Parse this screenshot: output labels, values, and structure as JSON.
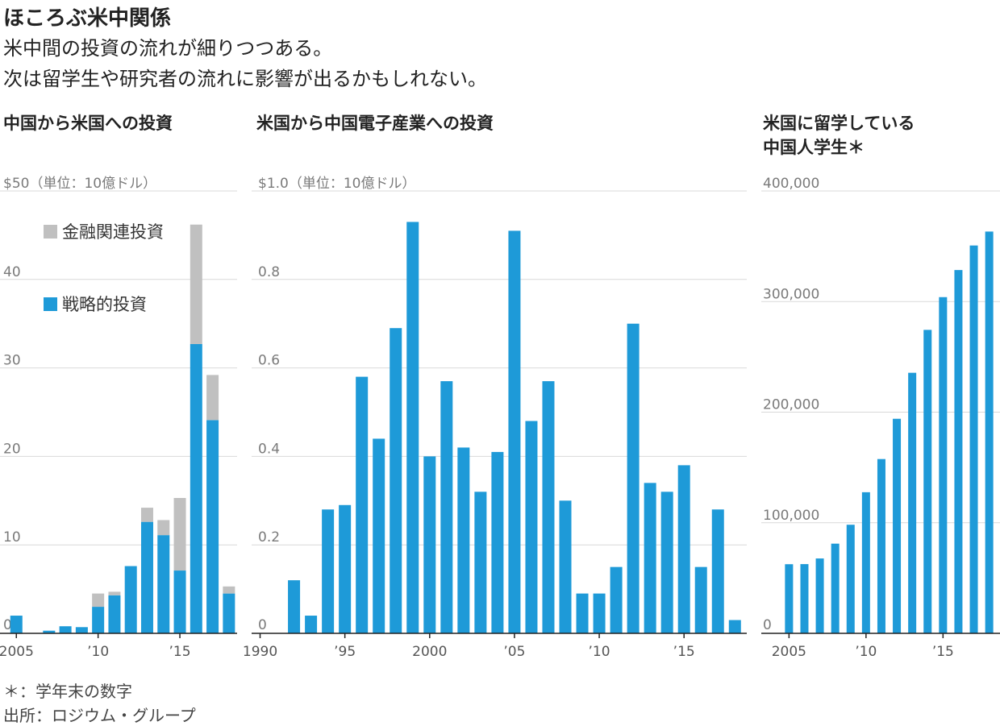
{
  "header": {
    "title": "ほころぶ米中関係",
    "subtitle_line1": "米中間の投資の流れが細りつつある。",
    "subtitle_line2": "次は留学生や研究者の流れに影響が出るかもしれない。"
  },
  "footer": {
    "note": "＊：学年末の数字",
    "source": "出所：ロジウム・グループ"
  },
  "colors": {
    "strategic": "#1e9ad8",
    "financial": "#c0c0c0",
    "grid": "#d9d9d9",
    "axis": "#222222"
  },
  "chart_data": [
    {
      "type": "bar",
      "stacked": true,
      "title": "中国から米国への投資",
      "unit_label": "$50（単位：10億ドル）",
      "ylim": [
        0,
        50
      ],
      "yticks": [
        "10",
        "20",
        "30",
        "40"
      ],
      "y_zero_label": "0",
      "x": [
        2005,
        2006,
        2007,
        2008,
        2009,
        2010,
        2011,
        2012,
        2013,
        2014,
        2015,
        2016,
        2017,
        2018
      ],
      "xticks": [
        {
          "x": 2005,
          "label": "2005"
        },
        {
          "x": 2010,
          "label": "’10"
        },
        {
          "x": 2015,
          "label": "’15"
        }
      ],
      "series": [
        {
          "name": "戦略的投資",
          "color": "#1e9ad8",
          "values": [
            2.0,
            0,
            0.3,
            0.8,
            0.7,
            3.0,
            4.3,
            7.6,
            12.6,
            11.1,
            7.1,
            32.7,
            24.1,
            4.5
          ]
        },
        {
          "name": "金融関連投資",
          "color": "#c0c0c0",
          "values": [
            0,
            0,
            0,
            0,
            0,
            1.5,
            0.4,
            0,
            1.6,
            1.7,
            8.2,
            13.5,
            5.1,
            0.8
          ]
        }
      ],
      "legend": [
        "金融関連投資",
        "戦略的投資"
      ],
      "legend_position": "top-left",
      "grid": true
    },
    {
      "type": "bar",
      "title": "米国から中国電子産業への投資",
      "unit_label": "$1.0（単位：10億ドル）",
      "ylim": [
        0,
        1.0
      ],
      "yticks": [
        "0.2",
        "0.4",
        "0.6",
        "0.8"
      ],
      "y_zero_label": "0",
      "x": [
        1990,
        1991,
        1992,
        1993,
        1994,
        1995,
        1996,
        1997,
        1998,
        1999,
        2000,
        2001,
        2002,
        2003,
        2004,
        2005,
        2006,
        2007,
        2008,
        2009,
        2010,
        2011,
        2012,
        2013,
        2014,
        2015,
        2016,
        2017,
        2018
      ],
      "xticks": [
        {
          "x": 1990,
          "label": "1990"
        },
        {
          "x": 1995,
          "label": "’95"
        },
        {
          "x": 2000,
          "label": "2000"
        },
        {
          "x": 2005,
          "label": "’05"
        },
        {
          "x": 2010,
          "label": "’10"
        },
        {
          "x": 2015,
          "label": "’15"
        }
      ],
      "series": [
        {
          "name": "",
          "color": "#1e9ad8",
          "values": [
            0,
            0,
            0.12,
            0.04,
            0.28,
            0.29,
            0.58,
            0.44,
            0.69,
            0.93,
            0.4,
            0.57,
            0.42,
            0.32,
            0.41,
            0.91,
            0.48,
            0.57,
            0.3,
            0.09,
            0.09,
            0.15,
            0.7,
            0.34,
            0.32,
            0.38,
            0.15,
            0.28,
            0.03
          ]
        }
      ],
      "grid": true
    },
    {
      "type": "bar",
      "title": "米国に留学している中国人学生＊",
      "title_line1": "米国に留学している",
      "title_line2": "中国人学生＊",
      "unit_label": "400,000",
      "ylim": [
        0,
        400000
      ],
      "yticks": [
        "100,000",
        "200,000",
        "300,000"
      ],
      "y_zero_label": "0",
      "x": [
        2005,
        2006,
        2007,
        2008,
        2009,
        2010,
        2011,
        2012,
        2013,
        2014,
        2015,
        2016,
        2017,
        2018
      ],
      "xticks": [
        {
          "x": 2005,
          "label": "2005"
        },
        {
          "x": 2010,
          "label": "’10"
        },
        {
          "x": 2015,
          "label": "’15"
        }
      ],
      "series": [
        {
          "name": "",
          "color": "#1e9ad8",
          "values": [
            62500,
            62600,
            67700,
            81100,
            98200,
            127600,
            157600,
            194000,
            235600,
            274400,
            304000,
            328500,
            350700,
            363300
          ]
        }
      ],
      "grid": true
    }
  ]
}
